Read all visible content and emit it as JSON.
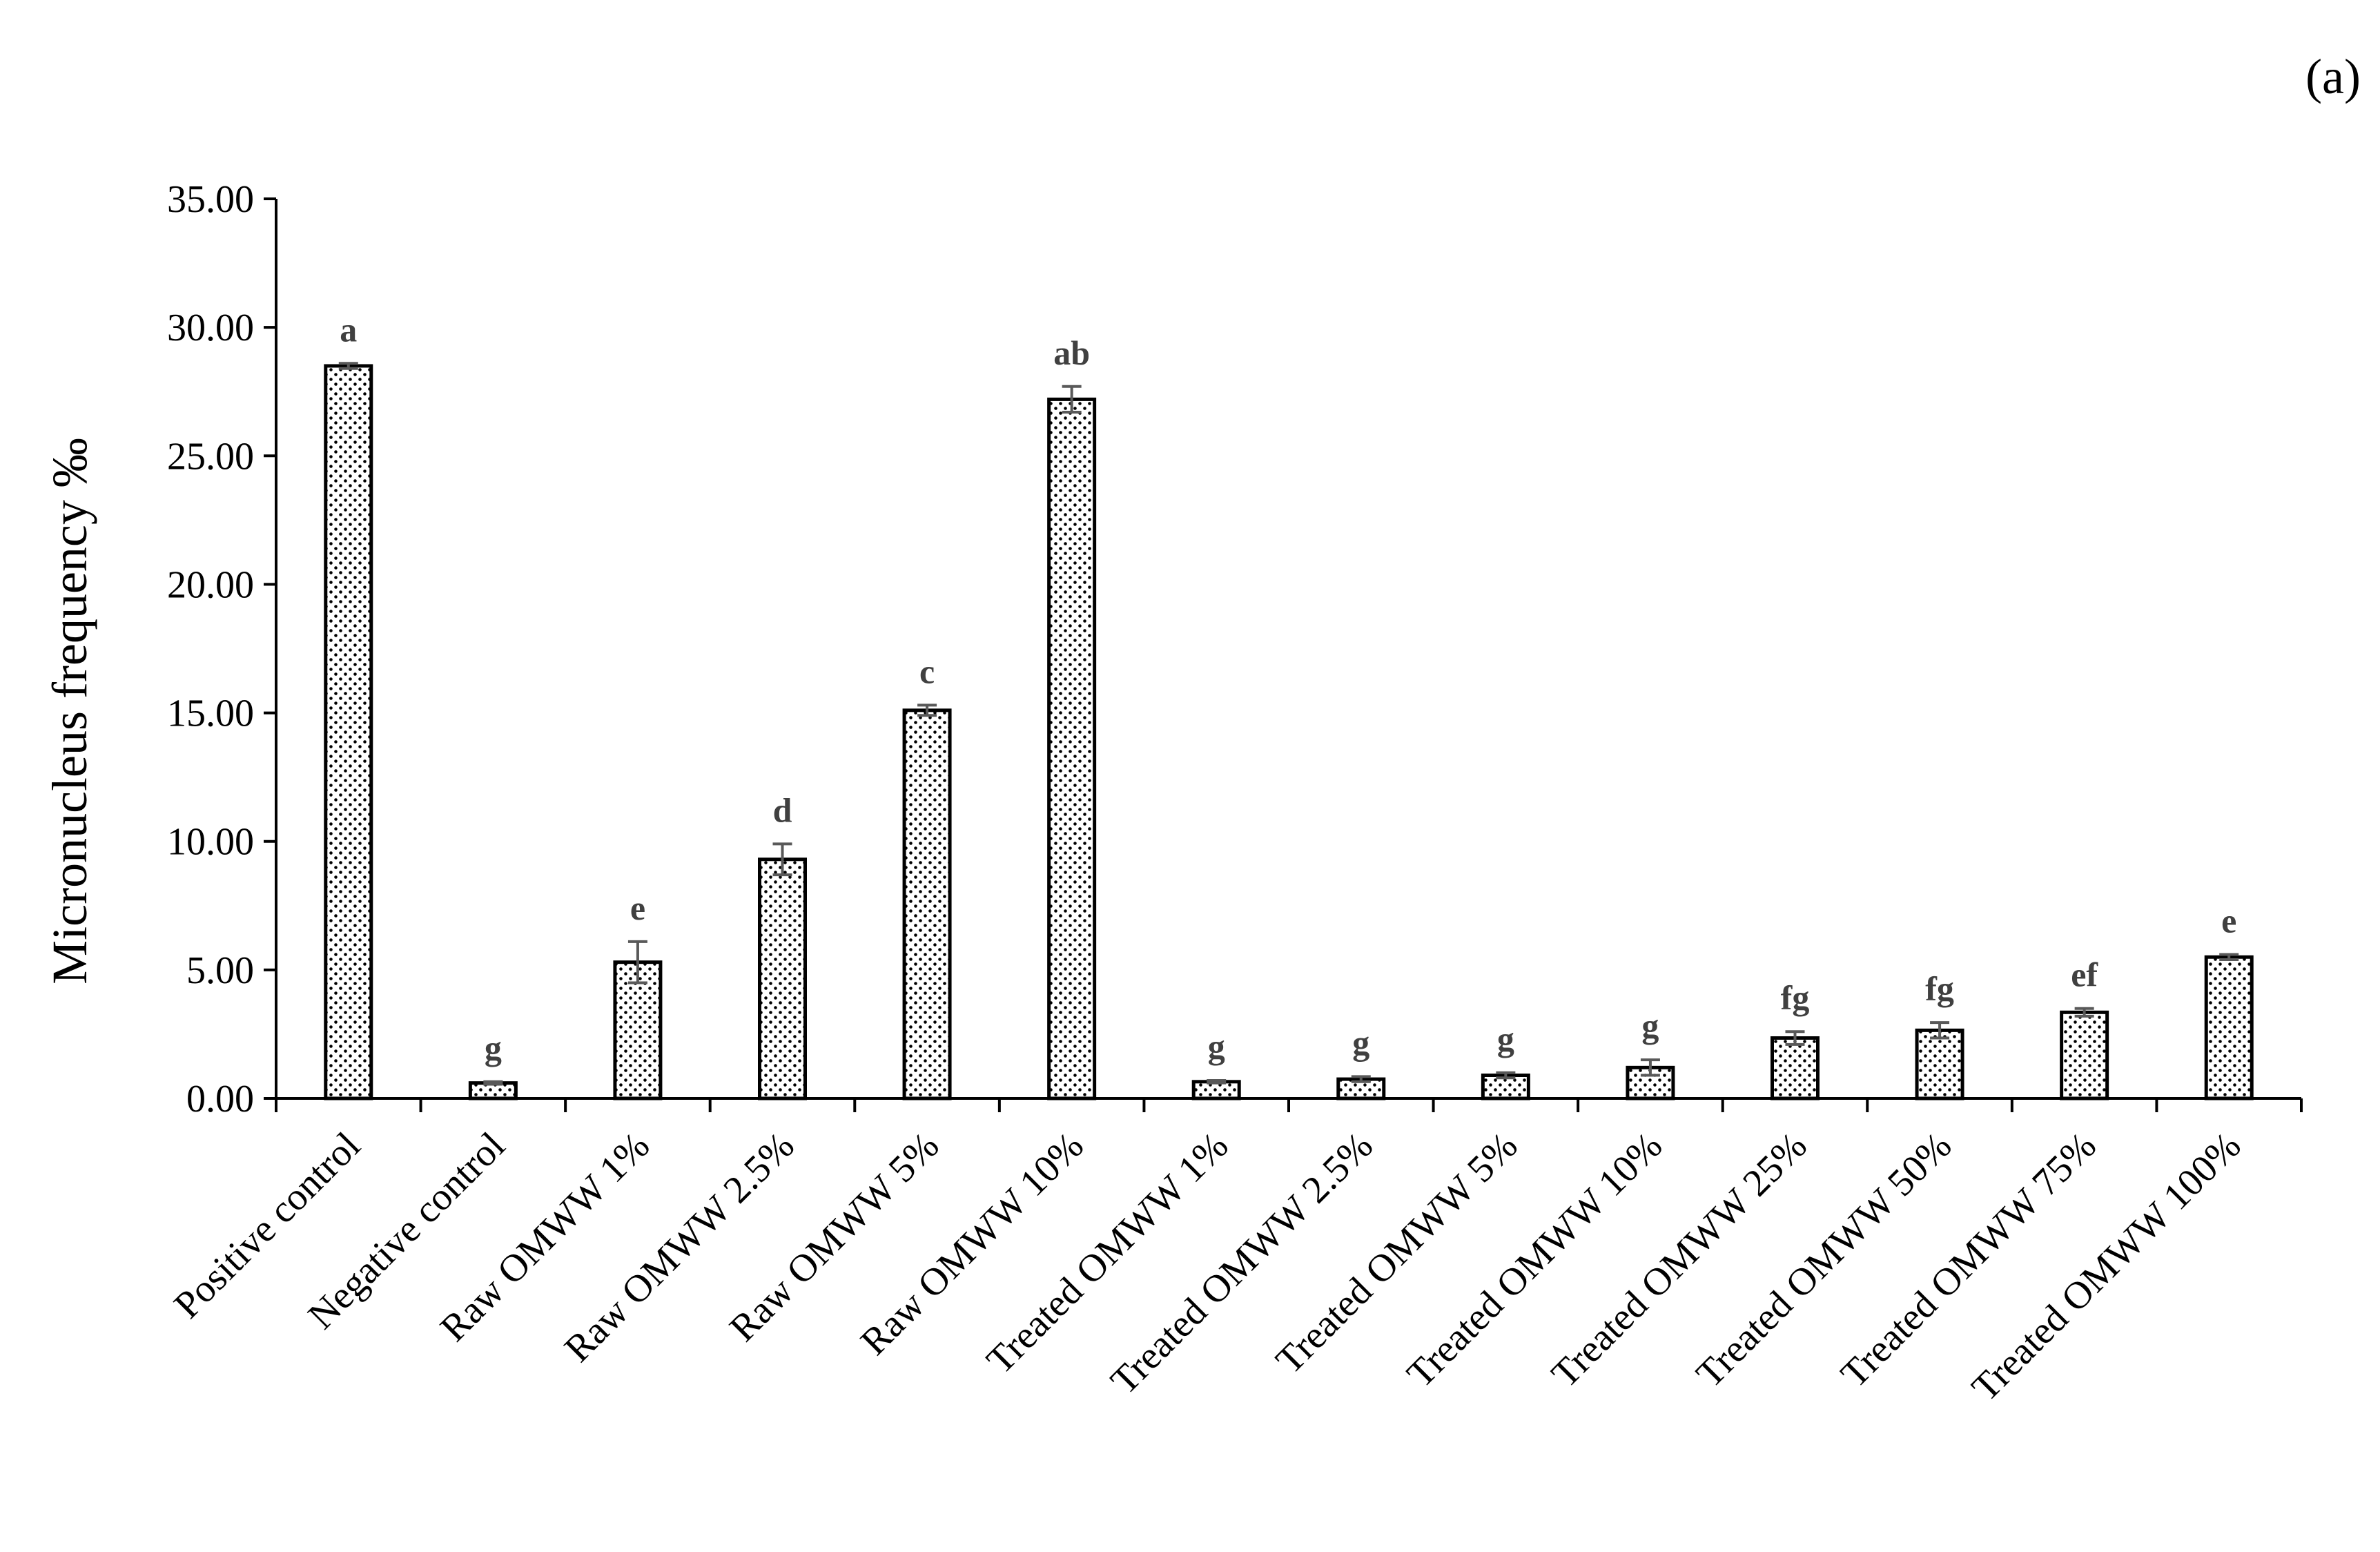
{
  "panel_label": "(a)",
  "chart_data": {
    "type": "bar",
    "title": "",
    "xlabel": "",
    "ylabel": "Micronucleus frequency ‰",
    "ylim": [
      0,
      35
    ],
    "yticks": [
      "0.00",
      "5.00",
      "10.00",
      "15.00",
      "20.00",
      "25.00",
      "30.00",
      "35.00"
    ],
    "grid": false,
    "legend": "none",
    "bar_pattern": "dotted",
    "categories": [
      "Positive control",
      "Negative control",
      "Raw OMWW 1%",
      "Raw OMWW 2.5%",
      "Raw OMWW 5%",
      "Raw OMWW 10%",
      "Treated OMWW 1%",
      "Treated OMWW 2.5%",
      "Treated OMWW 5%",
      "Treated OMWW 10%",
      "Treated OMWW 25%",
      "Treated OMWW 50%",
      "Treated OMWW 75%",
      "Treated OMWW 100%"
    ],
    "values": [
      28.5,
      0.6,
      5.3,
      9.3,
      15.1,
      27.2,
      0.65,
      0.75,
      0.9,
      1.2,
      2.35,
      2.65,
      3.35,
      5.5
    ],
    "errors": [
      0.1,
      0.05,
      0.8,
      0.6,
      0.2,
      0.5,
      0.05,
      0.1,
      0.1,
      0.3,
      0.25,
      0.3,
      0.15,
      0.1
    ],
    "significance": [
      "a",
      "g",
      "e",
      "d",
      "c",
      "ab",
      "g",
      "g",
      "g",
      "g",
      "fg",
      "fg",
      "ef",
      "e"
    ]
  },
  "colors": {
    "bar_fill": "#ffffff",
    "bar_stroke": "#000000",
    "dot": "#000000",
    "error_bar": "#595959",
    "significance_text": "#404040"
  }
}
